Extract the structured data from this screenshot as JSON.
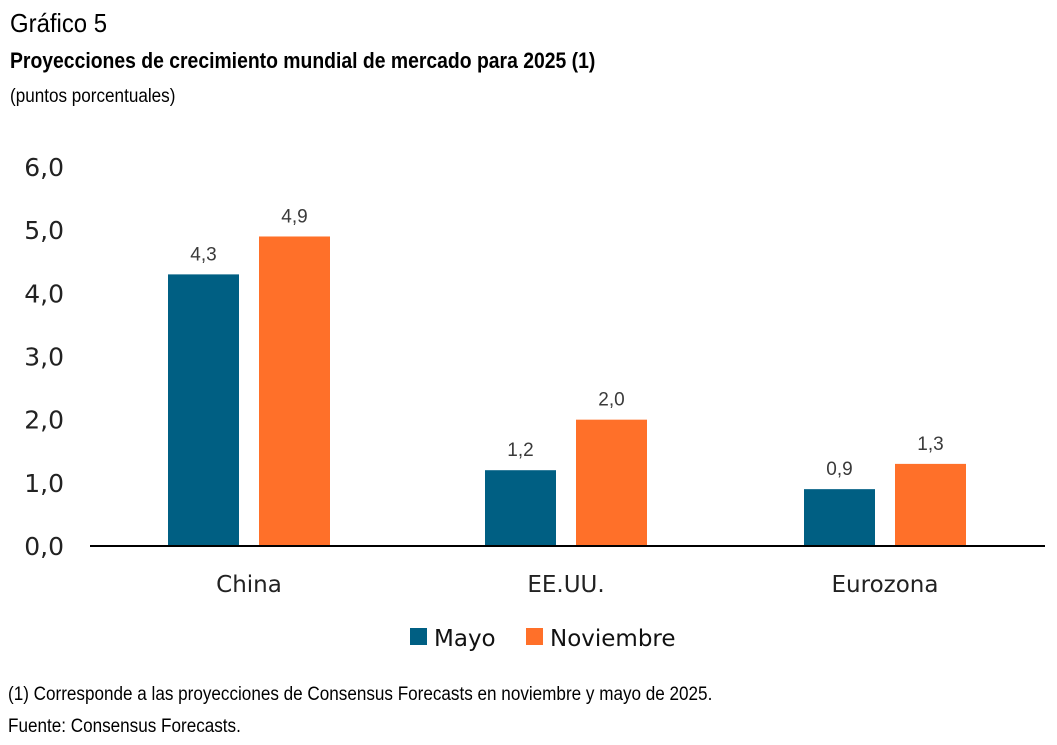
{
  "header": {
    "label": "Gráfico 5",
    "title": "Proyecciones de crecimiento mundial de mercado para 2025 (1)",
    "subtitle": "(puntos porcentuales)"
  },
  "footer": {
    "note": "(1) Corresponde a las proyecciones de Consensus Forecasts en noviembre y mayo de 2025.",
    "source": "Fuente: Consensus Forecasts."
  },
  "chart_data": {
    "type": "bar",
    "title": "Proyecciones de crecimiento mundial de mercado para 2025 (1)",
    "xlabel": "",
    "ylabel": "(puntos porcentuales)",
    "categories": [
      "China",
      "EE.UU.",
      "Eurozona"
    ],
    "series": [
      {
        "name": "Mayo",
        "color": "#005F83",
        "values": [
          4.3,
          1.2,
          0.9
        ],
        "labels": [
          "4,3",
          "1,2",
          "0,9"
        ]
      },
      {
        "name": "Noviembre",
        "color": "#FF7029",
        "values": [
          4.9,
          2.0,
          1.3
        ],
        "labels": [
          "4,9",
          "2,0",
          "1,3"
        ]
      }
    ],
    "ylim": [
      0,
      6
    ],
    "yticks": [
      0,
      1,
      2,
      3,
      4,
      5,
      6
    ],
    "ytick_labels": [
      "0,0",
      "1,0",
      "2,0",
      "3,0",
      "4,0",
      "5,0",
      "6,0"
    ],
    "grid": false,
    "legend": "bottom-center"
  }
}
